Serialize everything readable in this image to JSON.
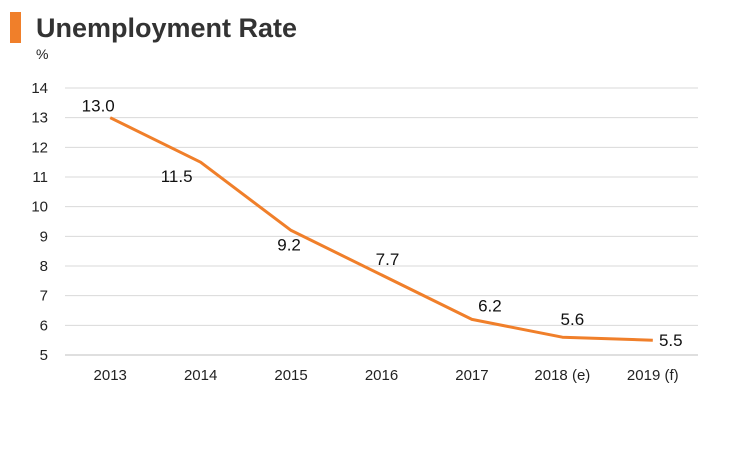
{
  "title": "Unemployment Rate",
  "colors": {
    "accent": "#f07f2a",
    "grid": "#d9d9d9"
  },
  "chart_data": {
    "type": "line",
    "title": "Unemployment Rate",
    "ylabel": "%",
    "xlabel": "",
    "categories": [
      "2013",
      "2014",
      "2015",
      "2016",
      "2017",
      "2018 (e)",
      "2019 (f)"
    ],
    "series": [
      {
        "values": [
          13.0,
          11.5,
          9.2,
          7.7,
          6.2,
          5.6,
          5.5
        ],
        "labels": [
          "13.0",
          "11.5",
          "9.2",
          "7.7",
          "6.2",
          "5.6",
          "5.5"
        ]
      }
    ],
    "ylim": [
      5,
      14
    ],
    "yticks": [
      5,
      6,
      7,
      8,
      9,
      10,
      11,
      12,
      13,
      14
    ],
    "grid": true,
    "legend": "none"
  }
}
